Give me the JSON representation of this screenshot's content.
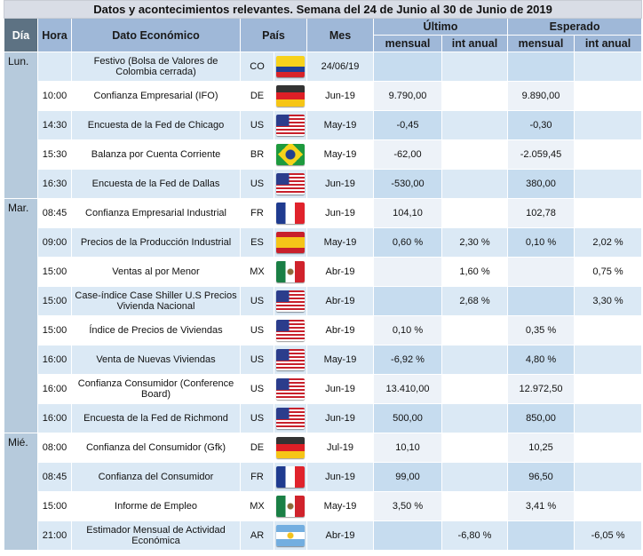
{
  "title": "Datos y acontecimientos relevantes. Semana del 24 de Junio al 30 de Junio de 2019",
  "headers": {
    "dia": "Día",
    "hora": "Hora",
    "dato": "Dato Económico",
    "pais": "País",
    "mes": "Mes",
    "ultimo": "Último",
    "esperado": "Esperado",
    "mensual": "mensual",
    "anual": "int anual"
  },
  "days": [
    {
      "label": "Lun.",
      "rows": [
        {
          "hora": "",
          "dato": "Festivo (Bolsa de Valores de Colombia cerrada)",
          "pais": "CO",
          "flag": "colombia-flag",
          "mes": "24/06/19",
          "um": "",
          "ua": "",
          "em": "",
          "ea": ""
        },
        {
          "hora": "10:00",
          "dato": "Confianza Empresarial (IFO)",
          "pais": "DE",
          "flag": "germany-flag",
          "mes": "Jun-19",
          "um": "9.790,00",
          "ua": "",
          "em": "9.890,00",
          "ea": ""
        },
        {
          "hora": "14:30",
          "dato": "Encuesta de la Fed de Chicago",
          "pais": "US",
          "flag": "usa-flag",
          "mes": "May-19",
          "um": "-0,45",
          "ua": "",
          "em": "-0,30",
          "ea": ""
        },
        {
          "hora": "15:30",
          "dato": "Balanza por Cuenta Corriente",
          "pais": "BR",
          "flag": "brazil-flag",
          "mes": "May-19",
          "um": "-62,00",
          "ua": "",
          "em": "-2.059,45",
          "ea": ""
        },
        {
          "hora": "16:30",
          "dato": "Encuesta de la Fed de Dallas",
          "pais": "US",
          "flag": "usa-flag",
          "mes": "Jun-19",
          "um": "-530,00",
          "ua": "",
          "em": "380,00",
          "ea": ""
        }
      ]
    },
    {
      "label": "Mar.",
      "rows": [
        {
          "hora": "08:45",
          "dato": "Confianza Empresarial Industrial",
          "pais": "FR",
          "flag": "france-flag",
          "mes": "Jun-19",
          "um": "104,10",
          "ua": "",
          "em": "102,78",
          "ea": ""
        },
        {
          "hora": "09:00",
          "dato": "Precios de la Producción Industrial",
          "pais": "ES",
          "flag": "spain-flag",
          "mes": "May-19",
          "um": "0,60 %",
          "ua": "2,30 %",
          "em": "0,10 %",
          "ea": "2,02 %"
        },
        {
          "hora": "15:00",
          "dato": "Ventas al por Menor",
          "pais": "MX",
          "flag": "mexico-flag",
          "mes": "Abr-19",
          "um": "",
          "ua": "1,60 %",
          "em": "",
          "ea": "0,75 %"
        },
        {
          "hora": "15:00",
          "dato": "Case-índice Case Shiller U.S Precios Vivienda Nacional",
          "pais": "US",
          "flag": "usa-flag",
          "mes": "Abr-19",
          "um": "",
          "ua": "2,68 %",
          "em": "",
          "ea": "3,30 %"
        },
        {
          "hora": "15:00",
          "dato": "Índice de Precios de Viviendas",
          "pais": "US",
          "flag": "usa-flag",
          "mes": "Abr-19",
          "um": "0,10 %",
          "ua": "",
          "em": "0,35 %",
          "ea": ""
        },
        {
          "hora": "16:00",
          "dato": "Venta de Nuevas Viviendas",
          "pais": "US",
          "flag": "usa-flag",
          "mes": "May-19",
          "um": "-6,92 %",
          "ua": "",
          "em": "4,80 %",
          "ea": ""
        },
        {
          "hora": "16:00",
          "dato": "Confianza Consumidor (Conference Board)",
          "pais": "US",
          "flag": "usa-flag",
          "mes": "Jun-19",
          "um": "13.410,00",
          "ua": "",
          "em": "12.972,50",
          "ea": ""
        },
        {
          "hora": "16:00",
          "dato": "Encuesta de la Fed de Richmond",
          "pais": "US",
          "flag": "usa-flag",
          "mes": "Jun-19",
          "um": "500,00",
          "ua": "",
          "em": "850,00",
          "ea": ""
        }
      ]
    },
    {
      "label": "Mié.",
      "rows": [
        {
          "hora": "08:00",
          "dato": "Confianza del Consumidor (Gfk)",
          "pais": "DE",
          "flag": "germany-flag",
          "mes": "Jul-19",
          "um": "10,10",
          "ua": "",
          "em": "10,25",
          "ea": ""
        },
        {
          "hora": "08:45",
          "dato": "Confianza del Consumidor",
          "pais": "FR",
          "flag": "france-flag",
          "mes": "Jun-19",
          "um": "99,00",
          "ua": "",
          "em": "96,50",
          "ea": ""
        },
        {
          "hora": "15:00",
          "dato": "Informe de Empleo",
          "pais": "MX",
          "flag": "mexico-flag",
          "mes": "May-19",
          "um": "3,50 %",
          "ua": "",
          "em": "3,41 %",
          "ea": ""
        },
        {
          "hora": "21:00",
          "dato": "Estimador Mensual de Actividad Económica",
          "pais": "AR",
          "flag": "argentina-flag",
          "mes": "Abr-19",
          "um": "",
          "ua": "-6,80 %",
          "em": "",
          "ea": "-6,05 %"
        }
      ]
    }
  ]
}
